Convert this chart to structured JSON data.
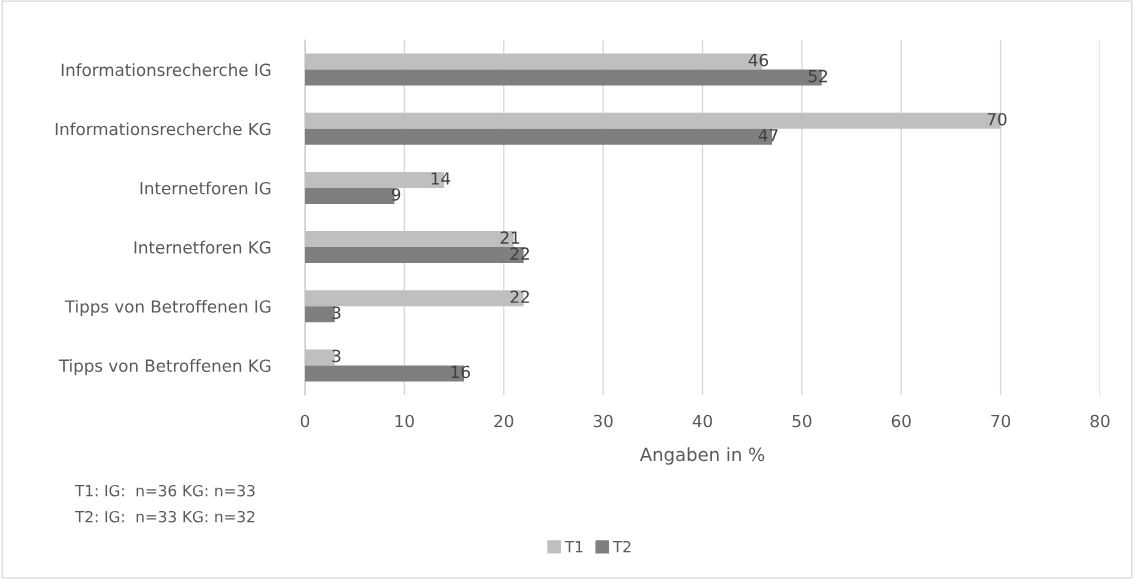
{
  "chart_data": {
    "type": "bar",
    "orientation": "horizontal",
    "categories": [
      "Informationsrecherche IG",
      "Informationsrecherche KG",
      "Internetforen IG",
      "Internetforen KG",
      "Tipps von Betroffenen IG",
      "Tipps von Betroffenen KG"
    ],
    "series": [
      {
        "name": "T1",
        "color": "#bfbfbf",
        "values": [
          46,
          70,
          14,
          21,
          22,
          3
        ]
      },
      {
        "name": "T2",
        "color": "#7f7f7f",
        "values": [
          52,
          47,
          9,
          22,
          3,
          16
        ]
      }
    ],
    "xlabel": "Angaben in %",
    "xlim": [
      0,
      80
    ],
    "xticks": [
      0,
      10,
      20,
      30,
      40,
      50,
      60,
      70,
      80
    ],
    "grid": "x",
    "legend": "bottom",
    "data_labels": true,
    "annotations": [
      "T1: IG:  n=36 KG: n=33",
      "T2: IG:  n=33 KG: n=32"
    ]
  }
}
